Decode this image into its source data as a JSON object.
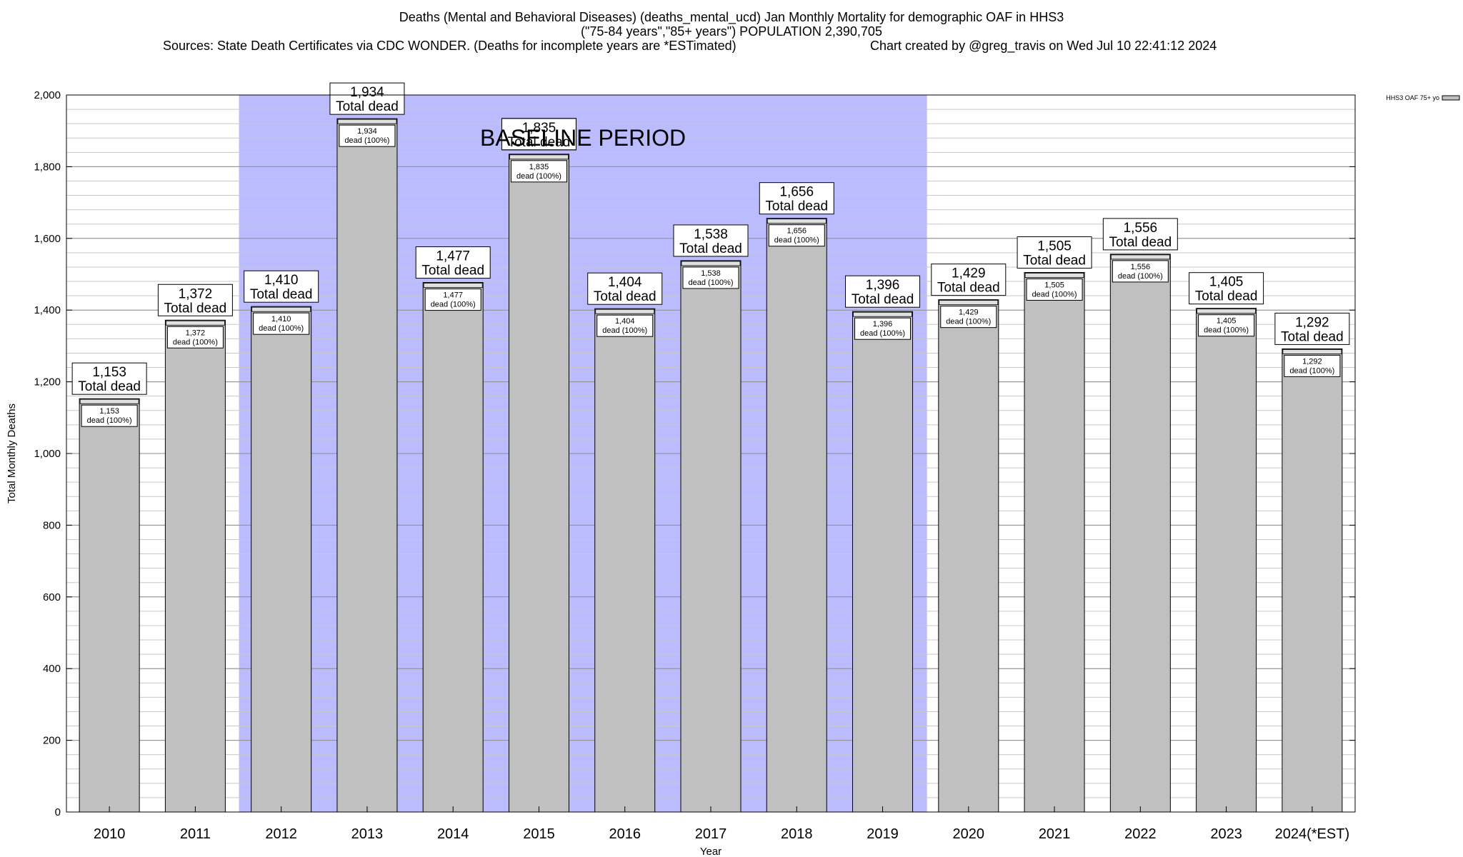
{
  "header": {
    "title_line1": "Deaths (Mental and Behavioral Diseases) (deaths_mental_ucd) Jan Monthly Mortality for demographic OAF in HHS3",
    "title_line2": "(\"75-84 years\",\"85+ years\") POPULATION 2,390,705",
    "title_line3_left": "Sources: State Death Certificates via CDC WONDER. (Deaths for incomplete years are *ESTimated)",
    "title_line3_right": "Chart created by @greg_travis on Wed Jul 10 22:41:12 2024"
  },
  "chart_data": {
    "type": "bar",
    "xlabel": "Year",
    "ylabel": "Total Monthly Deaths",
    "ylim": [
      0,
      2000
    ],
    "y_ticks": [
      "0",
      "200",
      "400",
      "600",
      "800",
      "1,000",
      "1,200",
      "1,400",
      "1,600",
      "1,800",
      "2,000"
    ],
    "y_minor_step": 40,
    "grid": true,
    "categories": [
      "2010",
      "2011",
      "2012",
      "2013",
      "2014",
      "2015",
      "2016",
      "2017",
      "2018",
      "2019",
      "2020",
      "2021",
      "2022",
      "2023",
      "2024(*EST)"
    ],
    "series": [
      {
        "name": "HHS3 OAF 75+ yo",
        "color": "#c0c0c0",
        "values": [
          1153,
          1372,
          1410,
          1934,
          1477,
          1835,
          1404,
          1538,
          1656,
          1396,
          1429,
          1505,
          1556,
          1405,
          1292
        ]
      }
    ],
    "value_labels": [
      "1,153",
      "1,372",
      "1,410",
      "1,934",
      "1,477",
      "1,835",
      "1,404",
      "1,538",
      "1,656",
      "1,396",
      "1,429",
      "1,505",
      "1,556",
      "1,405",
      "1,292"
    ],
    "total_label": "Total dead",
    "inner_label": "dead (100%)",
    "baseline": {
      "label": "BASELINE PERIOD",
      "from": "2012",
      "to": "2019",
      "color": "#bbbbff"
    },
    "legend_position": "top-right"
  }
}
